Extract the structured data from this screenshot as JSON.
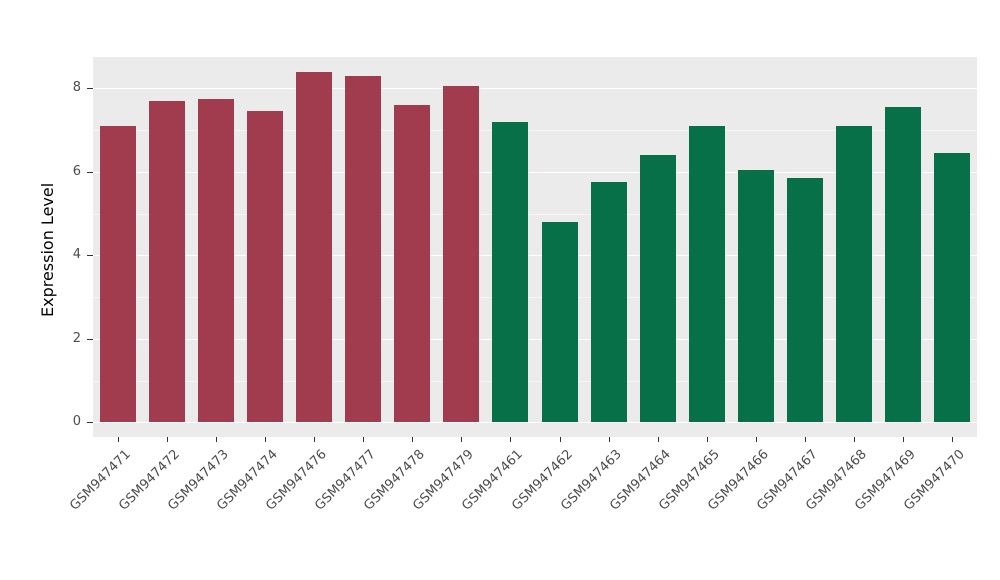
{
  "chart_data": {
    "type": "bar",
    "title": "",
    "xlabel": "",
    "ylabel": "Expression Level",
    "categories": [
      "GSM947471",
      "GSM947472",
      "GSM947473",
      "GSM947474",
      "GSM947476",
      "GSM947477",
      "GSM947478",
      "GSM947479",
      "GSM947461",
      "GSM947462",
      "GSM947463",
      "GSM947464",
      "GSM947465",
      "GSM947466",
      "GSM947467",
      "GSM947468",
      "GSM947469",
      "GSM947470"
    ],
    "values": [
      7.1,
      7.7,
      7.75,
      7.45,
      8.4,
      8.3,
      7.6,
      8.05,
      7.2,
      4.8,
      5.75,
      6.4,
      7.1,
      6.05,
      5.85,
      7.1,
      7.55,
      6.45
    ],
    "groups": [
      "red",
      "red",
      "red",
      "red",
      "red",
      "red",
      "red",
      "red",
      "green",
      "green",
      "green",
      "green",
      "green",
      "green",
      "green",
      "green",
      "green",
      "green"
    ],
    "group_colors": {
      "red": "#A13C4E",
      "green": "#087048"
    },
    "yticks": [
      0,
      2,
      4,
      6,
      8
    ],
    "minor_ticks": [
      1,
      3,
      5,
      7
    ],
    "ylim": [
      -0.35,
      8.75
    ],
    "panel_bg": "#EBEBEB",
    "grid_major_color": "#FFFFFF",
    "grid_minor_color": "rgba(255,255,255,0.55)",
    "legend": "none",
    "grid": "on"
  }
}
